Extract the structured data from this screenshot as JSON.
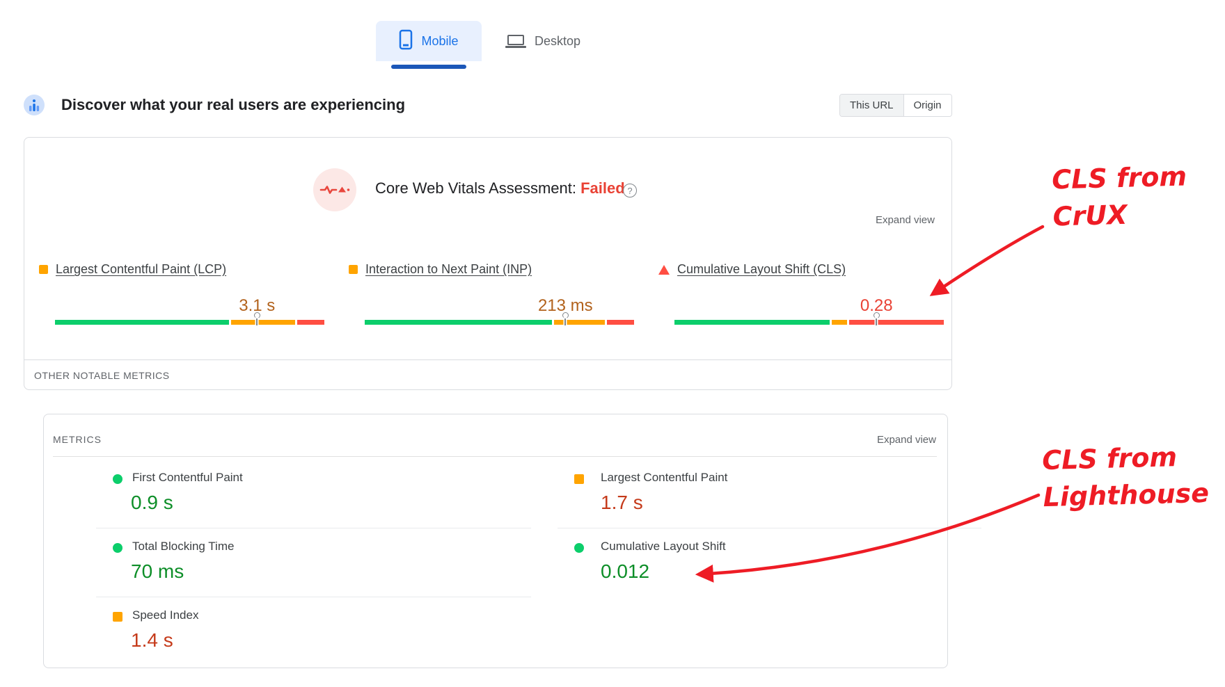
{
  "tabs": {
    "mobile": "Mobile",
    "desktop": "Desktop",
    "selected": "Mobile"
  },
  "field": {
    "title": "Discover what your real users are experiencing",
    "toggle": {
      "this_url": "This URL",
      "origin": "Origin",
      "selected": "This URL"
    },
    "assessment": {
      "label": "Core Web Vitals Assessment:",
      "status": "Failed",
      "help": "?"
    },
    "expand_view": "Expand view",
    "other_notable": "OTHER NOTABLE METRICS",
    "metrics": [
      {
        "id": "lcp",
        "name": "Largest Contentful Paint (LCP)",
        "value": "3.1 s",
        "rating": "needs-improvement",
        "marker": "square",
        "bar": {
          "good_pct": 65,
          "ni_pct": 24.5,
          "poor_pct": 10.5,
          "marker_pct": 75
        }
      },
      {
        "id": "inp",
        "name": "Interaction to Next Paint (INP)",
        "value": "213 ms",
        "rating": "needs-improvement",
        "marker": "square",
        "bar": {
          "good_pct": 70,
          "ni_pct": 19.5,
          "poor_pct": 10.5,
          "marker_pct": 74.5
        }
      },
      {
        "id": "cls",
        "name": "Cumulative Layout Shift (CLS)",
        "value": "0.28",
        "rating": "poor",
        "marker": "triangle",
        "bar": {
          "good_pct": 58,
          "ni_pct": 6.5,
          "poor_pct": 35.5,
          "marker_pct": 75
        }
      }
    ]
  },
  "lab": {
    "header": "METRICS",
    "expand_view": "Expand view",
    "items": [
      {
        "name": "First Contentful Paint",
        "value": "0.9 s",
        "rating": "good"
      },
      {
        "name": "Largest Contentful Paint",
        "value": "1.7 s",
        "rating": "average"
      },
      {
        "name": "Total Blocking Time",
        "value": "70 ms",
        "rating": "good"
      },
      {
        "name": "Cumulative Layout Shift",
        "value": "0.012",
        "rating": "good"
      },
      {
        "name": "Speed Index",
        "value": "1.4 s",
        "rating": "average"
      }
    ]
  },
  "annotations": {
    "crux": {
      "line1": "CLS from",
      "line2": "CrUX"
    },
    "lighthouse": {
      "line1": "CLS from",
      "line2": "Lighthouse"
    }
  },
  "colors": {
    "accent_blue": "#1a73e8",
    "tab_underline": "#1b57b8",
    "bar": {
      "green": "#0cce6b",
      "orange": "#ffa400",
      "red": "#ff4e42"
    },
    "text": {
      "good": "#0d8e28",
      "average": "#c53a1a",
      "needs-improvement": "#b2621c",
      "poor": "#e94235"
    },
    "marker": {
      "good": "#0cce6b",
      "average": "#ffa400"
    },
    "failed_red": "#e94235",
    "annotation_red": "#ee1c25"
  }
}
